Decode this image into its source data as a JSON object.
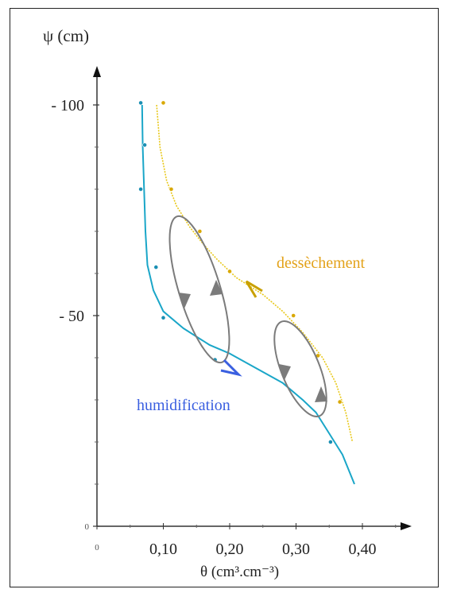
{
  "chart_data": {
    "type": "line",
    "xlabel": "θ (cm³.cm⁻³)",
    "ylabel": "ψ (cm)",
    "xlim": [
      0,
      0.47
    ],
    "ylim": [
      0,
      108
    ],
    "x_ticks": [
      {
        "value": 0,
        "label": "0"
      },
      {
        "value": 0.1,
        "label": "0,10"
      },
      {
        "value": 0.2,
        "label": "0,20"
      },
      {
        "value": 0.3,
        "label": "0,30"
      },
      {
        "value": 0.4,
        "label": "0,40"
      }
    ],
    "y_ticks": [
      {
        "value": 0,
        "label": "0"
      },
      {
        "value": 50,
        "label": "- 50"
      },
      {
        "value": 100,
        "label": "- 100"
      }
    ],
    "series": [
      {
        "name": "humidification",
        "color": "#1aa6c8",
        "label_color": "#3a5fe0",
        "curve": [
          [
            0.068,
            100
          ],
          [
            0.069,
            90
          ],
          [
            0.071,
            80
          ],
          [
            0.073,
            70
          ],
          [
            0.076,
            62
          ],
          [
            0.085,
            56
          ],
          [
            0.1,
            51
          ],
          [
            0.13,
            47
          ],
          [
            0.17,
            43
          ],
          [
            0.2,
            41
          ],
          [
            0.24,
            37.5
          ],
          [
            0.28,
            34
          ],
          [
            0.31,
            30
          ],
          [
            0.33,
            27
          ],
          [
            0.35,
            22
          ],
          [
            0.37,
            17
          ],
          [
            0.388,
            10
          ]
        ],
        "points": [
          [
            0.066,
            100.5
          ],
          [
            0.072,
            90.5
          ],
          [
            0.066,
            80
          ],
          [
            0.089,
            61.5
          ],
          [
            0.1,
            49.5
          ],
          [
            0.178,
            39.5
          ],
          [
            0.352,
            20
          ]
        ]
      },
      {
        "name": "dessèchement",
        "color": "#e8c81a",
        "label_color": "#e3a21a",
        "curve": [
          [
            0.09,
            100
          ],
          [
            0.095,
            90
          ],
          [
            0.105,
            82
          ],
          [
            0.12,
            76
          ],
          [
            0.14,
            71
          ],
          [
            0.16,
            67
          ],
          [
            0.18,
            63.5
          ],
          [
            0.21,
            59
          ],
          [
            0.25,
            55
          ],
          [
            0.28,
            51
          ],
          [
            0.31,
            46
          ],
          [
            0.34,
            40
          ],
          [
            0.36,
            34
          ],
          [
            0.375,
            27
          ],
          [
            0.385,
            20
          ]
        ],
        "points": [
          [
            0.1,
            100.5
          ],
          [
            0.112,
            80
          ],
          [
            0.155,
            70
          ],
          [
            0.2,
            60.5
          ],
          [
            0.296,
            50
          ],
          [
            0.333,
            40.5
          ],
          [
            0.366,
            29.5
          ]
        ]
      }
    ],
    "annotations": [
      {
        "text": "dessèchement",
        "color": "#e3a21a"
      },
      {
        "text": "humidification",
        "color": "#3a5fe0"
      }
    ]
  }
}
